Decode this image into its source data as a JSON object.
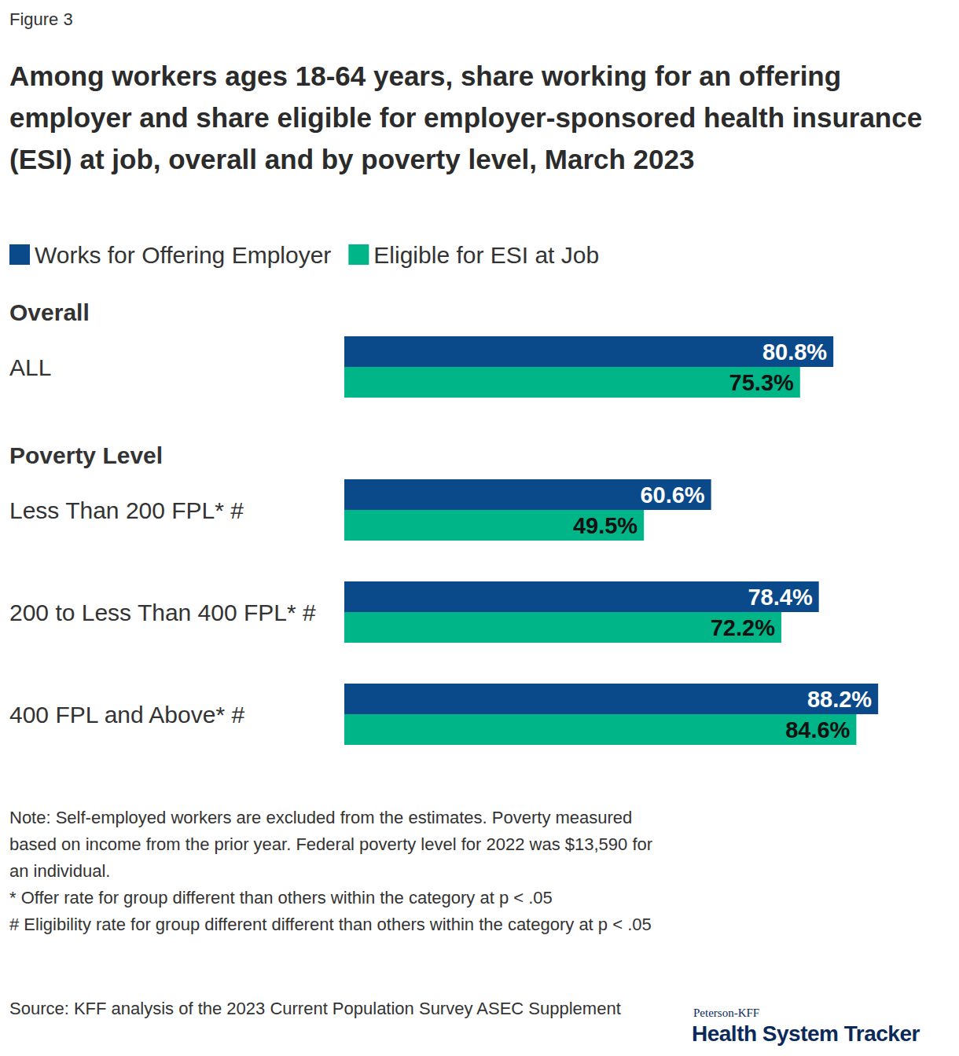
{
  "chart_data": {
    "type": "bar",
    "orientation": "horizontal",
    "label": "Figure 3",
    "title": "Among workers ages 18-64 years, share working for an offering employer and share eligible for employer-sponsored health insurance (ESI) at job, overall and by poverty level, March 2023",
    "categories": [
      "ALL",
      "Less Than 200 FPL* #",
      "200 to Less Than 400 FPL* #",
      "400 FPL and Above* #"
    ],
    "groups": [
      {
        "name": "Overall",
        "size": 1
      },
      {
        "name": "Poverty Level",
        "size": 3
      }
    ],
    "series": [
      {
        "name": "Works for Offering Employer",
        "color": "#0b4a8a",
        "values": [
          80.8,
          60.6,
          78.4,
          88.2
        ],
        "value_labels": [
          "80.8%",
          "60.6%",
          "78.4%",
          "88.2%"
        ]
      },
      {
        "name": "Eligible for ESI at Job",
        "color": "#00b587",
        "values": [
          75.3,
          49.5,
          72.2,
          84.6
        ],
        "value_labels": [
          "75.3%",
          "49.5%",
          "72.2%",
          "84.6%"
        ]
      }
    ],
    "xlim": [
      0,
      100
    ],
    "tick_labels": false,
    "grid": false,
    "data_labels": true,
    "legend": "top-left",
    "notes": [
      "Note: Self-employed workers are excluded from the estimates. Poverty measured based on income from the prior year. Federal poverty level for 2022 was $13,590 for an individual.",
      "* Offer rate for group different than others within the category at p < .05",
      "# Eligibility rate for group different different than others within the category at p < .05"
    ],
    "source": "Source: KFF analysis of the 2023 Current Population Survey ASEC Supplement",
    "credit": [
      "Peterson-KFF",
      "Health System Tracker"
    ]
  }
}
